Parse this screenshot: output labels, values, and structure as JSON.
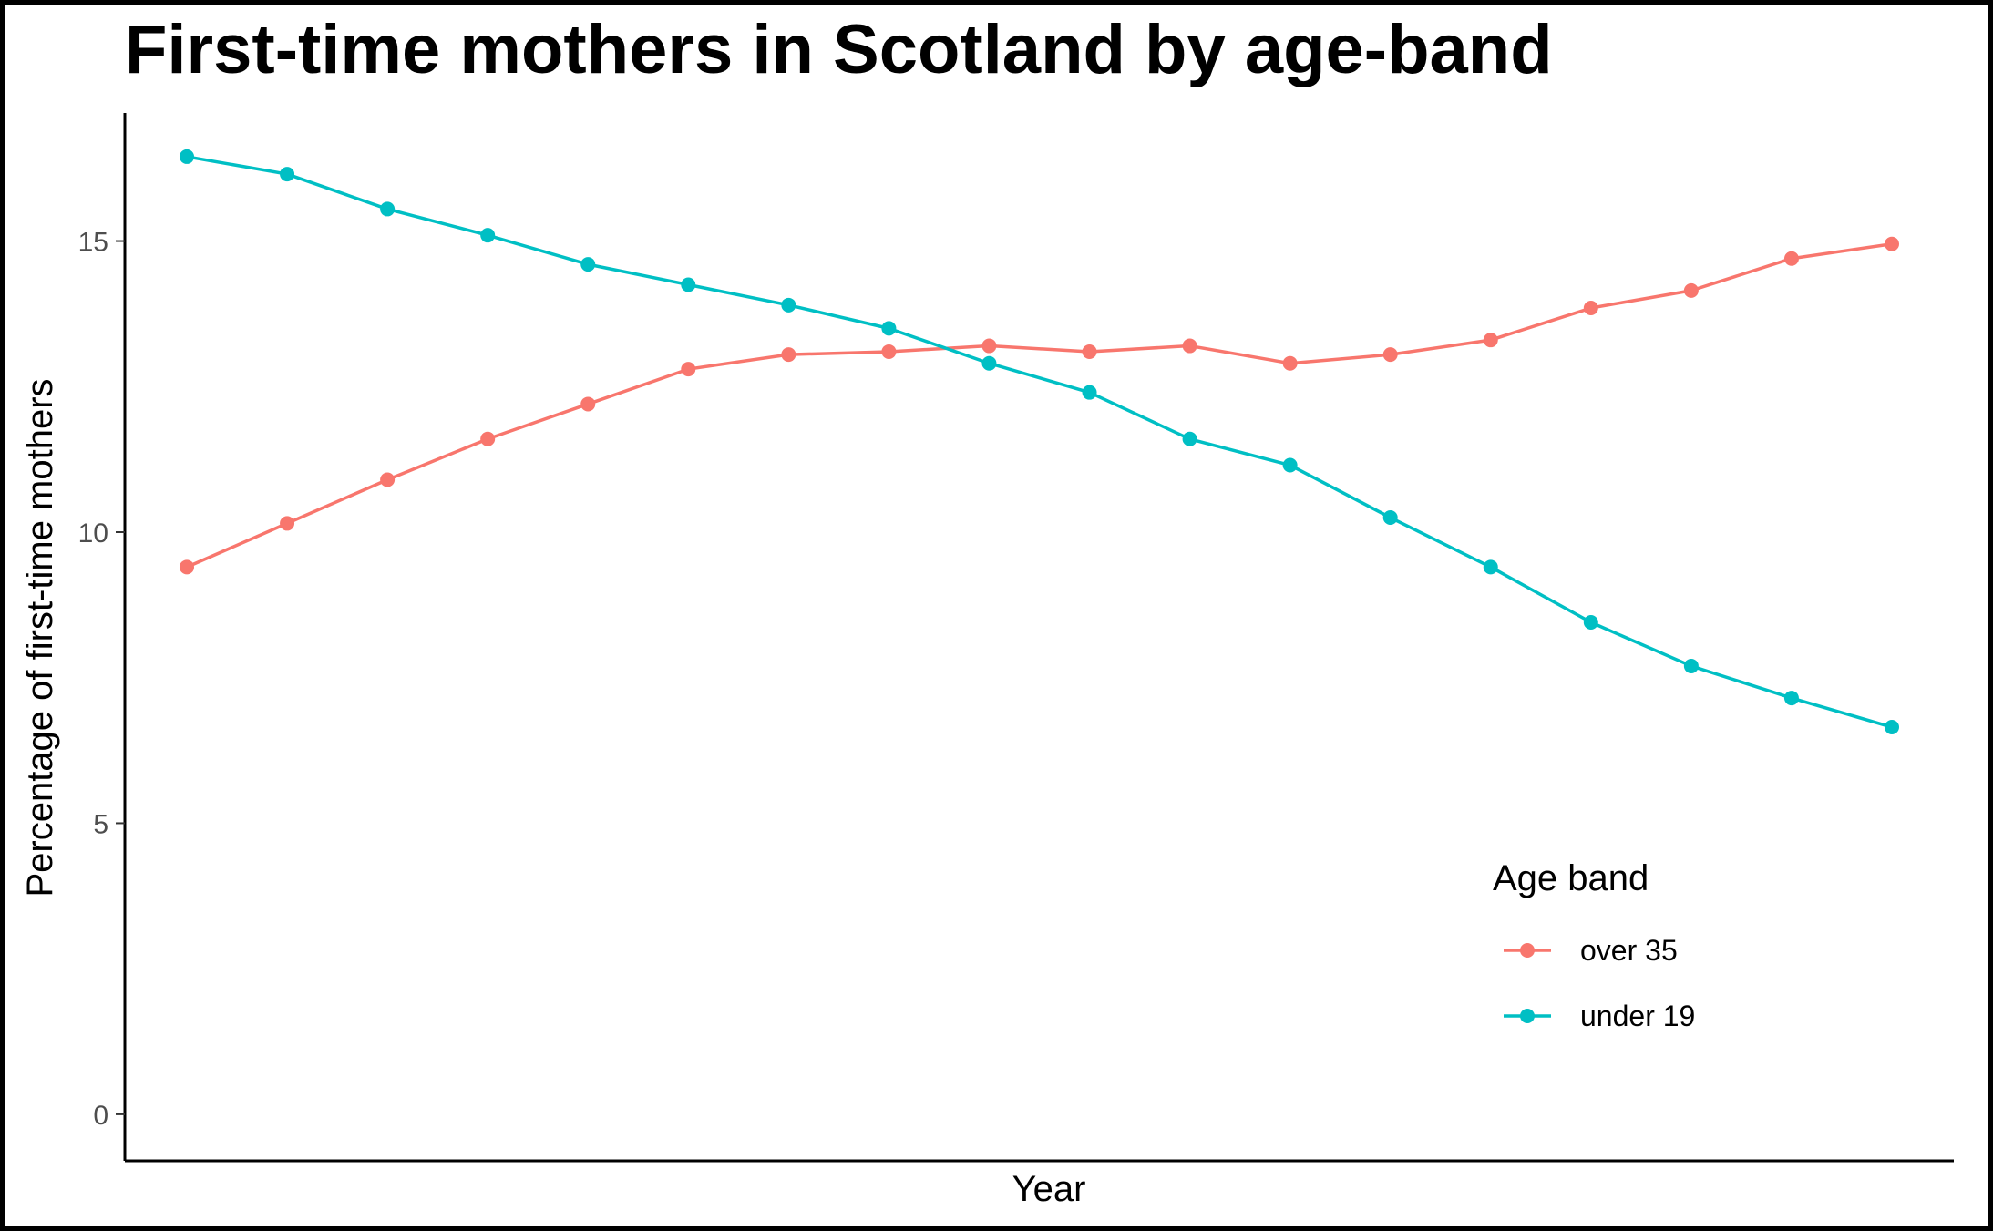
{
  "chart_data": {
    "type": "line",
    "title": "First-time mothers in Scotland by age-band",
    "xlabel": "Year",
    "ylabel": "Percentage of first-time mothers",
    "x_tick_labels_shown": false,
    "ylim": [
      -0.8,
      17.2
    ],
    "yticks": [
      0,
      5,
      10,
      15
    ],
    "ytick_labels": [
      "0",
      "5",
      "10",
      "15"
    ],
    "grid": false,
    "legend": {
      "title": "Age band",
      "position": "bottom-right"
    },
    "x": [
      1,
      2,
      3,
      4,
      5,
      6,
      7,
      8,
      9,
      10,
      11,
      12,
      13,
      14,
      15,
      16,
      17,
      18
    ],
    "series": [
      {
        "name": "over 35",
        "color": "#F8766D",
        "values": [
          9.4,
          10.15,
          10.9,
          11.6,
          12.2,
          12.8,
          13.05,
          13.1,
          13.2,
          13.1,
          13.2,
          12.9,
          13.05,
          13.3,
          13.85,
          14.15,
          14.7,
          14.95
        ]
      },
      {
        "name": "under 19",
        "color": "#00BFC4",
        "values": [
          16.45,
          16.15,
          15.55,
          15.1,
          14.6,
          14.25,
          13.9,
          13.5,
          12.9,
          12.4,
          11.6,
          11.15,
          10.25,
          9.4,
          8.45,
          7.7,
          7.15,
          6.65
        ]
      }
    ]
  }
}
